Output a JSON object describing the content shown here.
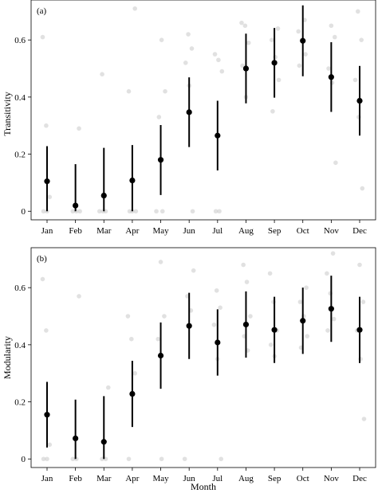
{
  "chart_data": [
    {
      "type": "scatter",
      "panel_label": "(a)",
      "ylabel": "Transitivity",
      "xlabel": "",
      "categories": [
        "Jan",
        "Feb",
        "Mar",
        "Apr",
        "May",
        "Jun",
        "Jul",
        "Aug",
        "Sep",
        "Oct",
        "Nov",
        "Dec"
      ],
      "ylim": [
        -0.03,
        0.74
      ],
      "yticks": [
        0,
        0.2,
        0.4,
        0.6
      ],
      "ytick_labels": [
        "0",
        "0.2",
        "0.4",
        "0.6"
      ],
      "grid": false,
      "series": [
        {
          "kind": "mean_with_error",
          "mean": [
            0.105,
            0.02,
            0.055,
            0.108,
            0.18,
            0.347,
            0.265,
            0.5,
            0.52,
            0.597,
            0.47,
            0.387
          ],
          "lower": [
            0.0,
            0.0,
            0.0,
            0.0,
            0.057,
            0.225,
            0.143,
            0.378,
            0.398,
            0.473,
            0.348,
            0.265
          ],
          "upper": [
            0.228,
            0.165,
            0.222,
            0.232,
            0.302,
            0.469,
            0.387,
            0.622,
            0.642,
            0.721,
            0.592,
            0.509
          ]
        },
        {
          "kind": "raw_points",
          "color": "#c8c8c8",
          "points": [
            [
              1,
              0.61
            ],
            [
              1,
              0.3
            ],
            [
              1,
              0.05
            ],
            [
              1,
              0.0
            ],
            [
              1,
              0.0
            ],
            [
              2,
              0.29
            ],
            [
              2,
              0.0
            ],
            [
              2,
              0.0
            ],
            [
              2,
              0.0
            ],
            [
              3,
              0.48
            ],
            [
              3,
              0.0
            ],
            [
              3,
              0.0
            ],
            [
              3,
              0.0
            ],
            [
              4,
              0.71
            ],
            [
              4,
              0.42
            ],
            [
              4,
              0.0
            ],
            [
              4,
              0.0
            ],
            [
              4,
              0.0
            ],
            [
              5,
              0.6
            ],
            [
              5,
              0.42
            ],
            [
              5,
              0.33
            ],
            [
              5,
              0.0
            ],
            [
              5,
              0.0
            ],
            [
              6,
              0.62
            ],
            [
              6,
              0.57
            ],
            [
              6,
              0.52
            ],
            [
              6,
              0.44
            ],
            [
              6,
              0.0
            ],
            [
              7,
              0.55
            ],
            [
              7,
              0.53
            ],
            [
              7,
              0.49
            ],
            [
              7,
              0.0
            ],
            [
              7,
              0.0
            ],
            [
              8,
              0.66
            ],
            [
              8,
              0.65
            ],
            [
              8,
              0.59
            ],
            [
              8,
              0.51
            ],
            [
              8,
              0.4
            ],
            [
              9,
              0.64
            ],
            [
              9,
              0.6
            ],
            [
              9,
              0.54
            ],
            [
              9,
              0.46
            ],
            [
              9,
              0.35
            ],
            [
              10,
              0.67
            ],
            [
              10,
              0.63
            ],
            [
              10,
              0.6
            ],
            [
              10,
              0.55
            ],
            [
              10,
              0.51
            ],
            [
              11,
              0.65
            ],
            [
              11,
              0.61
            ],
            [
              11,
              0.5
            ],
            [
              11,
              0.45
            ],
            [
              11,
              0.17
            ],
            [
              12,
              0.7
            ],
            [
              12,
              0.6
            ],
            [
              12,
              0.46
            ],
            [
              12,
              0.33
            ],
            [
              12,
              0.08
            ]
          ]
        }
      ]
    },
    {
      "type": "scatter",
      "panel_label": "(b)",
      "ylabel": "Modularity",
      "xlabel": "Month",
      "categories": [
        "Jan",
        "Feb",
        "Mar",
        "Apr",
        "May",
        "Jun",
        "Jul",
        "Aug",
        "Sep",
        "Oct",
        "Nov",
        "Dec"
      ],
      "ylim": [
        -0.03,
        0.74
      ],
      "yticks": [
        0,
        0.2,
        0.4,
        0.6
      ],
      "ytick_labels": [
        "0",
        "0.2",
        "0.4",
        "0.6"
      ],
      "grid": false,
      "series": [
        {
          "kind": "mean_with_error",
          "mean": [
            0.155,
            0.072,
            0.06,
            0.228,
            0.362,
            0.466,
            0.408,
            0.471,
            0.452,
            0.484,
            0.526,
            0.452
          ],
          "lower": [
            0.04,
            0.0,
            0.0,
            0.112,
            0.246,
            0.35,
            0.292,
            0.355,
            0.336,
            0.368,
            0.41,
            0.336
          ],
          "upper": [
            0.27,
            0.208,
            0.22,
            0.344,
            0.478,
            0.582,
            0.524,
            0.587,
            0.568,
            0.6,
            0.642,
            0.568
          ]
        },
        {
          "kind": "raw_points",
          "color": "#c8c8c8",
          "points": [
            [
              1,
              0.63
            ],
            [
              1,
              0.45
            ],
            [
              1,
              0.05
            ],
            [
              1,
              0.0
            ],
            [
              1,
              0.0
            ],
            [
              2,
              0.57
            ],
            [
              2,
              0.0
            ],
            [
              2,
              0.0
            ],
            [
              3,
              0.25
            ],
            [
              3,
              0.0
            ],
            [
              3,
              0.0
            ],
            [
              4,
              0.5
            ],
            [
              4,
              0.42
            ],
            [
              4,
              0.3
            ],
            [
              4,
              0.0
            ],
            [
              5,
              0.69
            ],
            [
              5,
              0.5
            ],
            [
              5,
              0.42
            ],
            [
              5,
              0.0
            ],
            [
              6,
              0.66
            ],
            [
              6,
              0.57
            ],
            [
              6,
              0.52
            ],
            [
              6,
              0.0
            ],
            [
              7,
              0.59
            ],
            [
              7,
              0.53
            ],
            [
              7,
              0.47
            ],
            [
              7,
              0.35
            ],
            [
              7,
              0.0
            ],
            [
              8,
              0.68
            ],
            [
              8,
              0.62
            ],
            [
              8,
              0.5
            ],
            [
              8,
              0.43
            ],
            [
              8,
              0.38
            ],
            [
              9,
              0.65
            ],
            [
              9,
              0.55
            ],
            [
              9,
              0.45
            ],
            [
              9,
              0.4
            ],
            [
              9,
              0.36
            ],
            [
              10,
              0.6
            ],
            [
              10,
              0.55
            ],
            [
              10,
              0.5
            ],
            [
              10,
              0.43
            ],
            [
              10,
              0.39
            ],
            [
              11,
              0.72
            ],
            [
              11,
              0.65
            ],
            [
              11,
              0.58
            ],
            [
              11,
              0.49
            ],
            [
              11,
              0.45
            ],
            [
              12,
              0.68
            ],
            [
              12,
              0.55
            ],
            [
              12,
              0.45
            ],
            [
              12,
              0.35
            ],
            [
              12,
              0.14
            ]
          ]
        }
      ]
    }
  ]
}
